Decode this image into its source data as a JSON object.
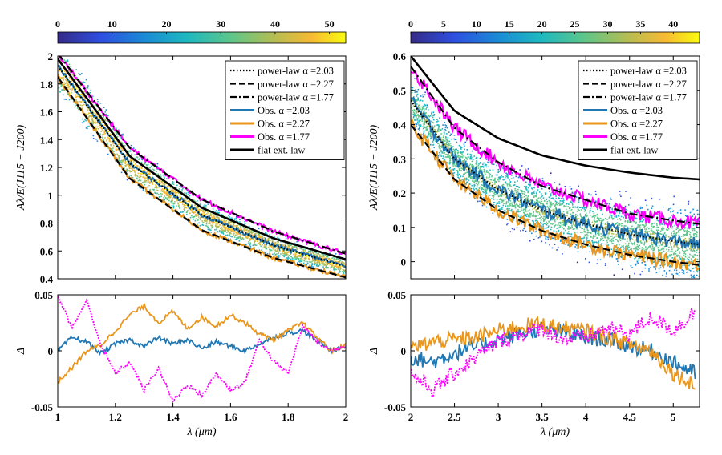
{
  "figure": {
    "description_free": true
  },
  "colors": {
    "power_law": "#000000",
    "obs_blue": "#1f77b4",
    "obs_orange": "#e8961e",
    "obs_magenta": "#ff00ff",
    "flat": "#000000",
    "scatter_low": "#4b3fd1",
    "scatter_mid": "#20c0c0",
    "scatter_high": "#f5e23b"
  },
  "chart_data": [
    {
      "type": "line",
      "panel": "left-top",
      "colorbar": {
        "ticks": [
          "0",
          "10",
          "20",
          "30",
          "40",
          "50"
        ],
        "range": [
          0,
          53
        ]
      },
      "xlim": [
        1,
        2
      ],
      "ylim": [
        0.4,
        2
      ],
      "xticks": [],
      "yticks": [
        "0.4",
        "0.6",
        "0.8",
        "1",
        "1.2",
        "1.4",
        "1.6",
        "1.8",
        "2"
      ],
      "ylabel": "Aλ/E(J115 − J200)",
      "legend": [
        "power-law α =2.03",
        "power-law α =2.27",
        "power-law α =1.77",
        "Obs. α =2.03",
        "Obs. α =2.27",
        "Obs. α =1.77",
        "flat ext. law"
      ],
      "series": [
        {
          "name": "power-law α =2.03",
          "style": "dotted",
          "x": [
            1.0,
            1.25,
            1.5,
            1.75,
            2.0
          ],
          "y": [
            1.93,
            1.23,
            0.86,
            0.64,
            0.49
          ]
        },
        {
          "name": "power-law α =2.27",
          "style": "dashed",
          "x": [
            1.0,
            1.25,
            1.5,
            1.75,
            2.0
          ],
          "y": [
            1.85,
            1.12,
            0.75,
            0.55,
            0.41
          ]
        },
        {
          "name": "power-law α =1.77",
          "style": "dashdot",
          "x": [
            1.0,
            1.25,
            1.5,
            1.75,
            2.0
          ],
          "y": [
            2.02,
            1.34,
            0.97,
            0.74,
            0.58
          ]
        },
        {
          "name": "flat ext. law",
          "style": "solid",
          "x": [
            1.0,
            1.25,
            1.5,
            1.75,
            2.0
          ],
          "y": [
            1.98,
            1.28,
            0.91,
            0.69,
            0.54
          ]
        }
      ]
    },
    {
      "type": "line",
      "panel": "left-bottom",
      "xlim": [
        1,
        2
      ],
      "ylim": [
        -0.05,
        0.05
      ],
      "xticks": [
        "1",
        "1.2",
        "1.4",
        "1.6",
        "1.8",
        "2"
      ],
      "yticks": [
        "-0.05",
        "0",
        "0.05"
      ],
      "xlabel": "λ (μm)",
      "ylabel": "Δ",
      "series": [
        {
          "name": "Obs. α =2.03",
          "x": [
            1.0,
            1.05,
            1.1,
            1.15,
            1.2,
            1.25,
            1.3,
            1.35,
            1.4,
            1.45,
            1.5,
            1.55,
            1.6,
            1.65,
            1.7,
            1.75,
            1.8,
            1.85,
            1.9,
            1.95,
            2.0
          ],
          "y": [
            0.0,
            0.012,
            0.008,
            -0.002,
            0.006,
            0.01,
            0.004,
            0.012,
            0.006,
            0.01,
            0.002,
            0.008,
            0.004,
            0.0,
            0.006,
            0.012,
            0.016,
            0.018,
            0.01,
            0.0,
            0.004
          ]
        },
        {
          "name": "Obs. α =2.27",
          "x": [
            1.0,
            1.05,
            1.1,
            1.15,
            1.2,
            1.25,
            1.3,
            1.35,
            1.4,
            1.45,
            1.5,
            1.55,
            1.6,
            1.65,
            1.7,
            1.75,
            1.8,
            1.85,
            1.9,
            1.95,
            2.0
          ],
          "y": [
            -0.028,
            -0.015,
            0.0,
            0.005,
            0.018,
            0.032,
            0.04,
            0.025,
            0.035,
            0.02,
            0.03,
            0.022,
            0.032,
            0.025,
            0.015,
            0.01,
            0.018,
            0.025,
            0.012,
            0.0,
            0.005
          ]
        },
        {
          "name": "Obs. α =1.77",
          "x": [
            1.0,
            1.05,
            1.1,
            1.15,
            1.2,
            1.25,
            1.3,
            1.35,
            1.4,
            1.45,
            1.5,
            1.55,
            1.6,
            1.65,
            1.7,
            1.75,
            1.8,
            1.85,
            1.9,
            1.95,
            2.0
          ],
          "y": [
            0.05,
            0.02,
            0.045,
            0.005,
            -0.02,
            -0.01,
            -0.035,
            -0.015,
            -0.045,
            -0.03,
            -0.04,
            -0.02,
            -0.035,
            -0.028,
            0.01,
            -0.01,
            -0.02,
            0.022,
            0.008,
            0.0,
            0.005
          ]
        }
      ]
    },
    {
      "type": "line",
      "panel": "right-top",
      "colorbar": {
        "ticks": [
          "0",
          "5",
          "10",
          "15",
          "20",
          "25",
          "30",
          "35",
          "40"
        ],
        "range": [
          0,
          44
        ]
      },
      "xlim": [
        2,
        5.3
      ],
      "ylim": [
        -0.05,
        0.6
      ],
      "xticks": [],
      "yticks": [
        "0",
        "0.1",
        "0.2",
        "0.3",
        "0.4",
        "0.5",
        "0.6"
      ],
      "ylabel": "Aλ/E(J115 − J200)",
      "legend": [
        "power-law α =2.03",
        "power-law α =2.27",
        "power-law α =1.77",
        "Obs. α =2.03",
        "Obs. α =2.27",
        "Obs. α =1.77",
        "flat ext. law"
      ],
      "series": [
        {
          "name": "power-law α =2.03",
          "style": "dotted",
          "x": [
            2.0,
            2.5,
            3.0,
            3.5,
            4.0,
            4.5,
            5.0,
            5.3
          ],
          "y": [
            0.47,
            0.3,
            0.21,
            0.15,
            0.11,
            0.08,
            0.06,
            0.05
          ]
        },
        {
          "name": "power-law α =2.27",
          "style": "dashed",
          "x": [
            2.0,
            2.5,
            3.0,
            3.5,
            4.0,
            4.5,
            5.0,
            5.3
          ],
          "y": [
            0.4,
            0.24,
            0.15,
            0.09,
            0.05,
            0.02,
            0.0,
            -0.01
          ]
        },
        {
          "name": "power-law α =1.77",
          "style": "dashdot",
          "x": [
            2.0,
            2.5,
            3.0,
            3.5,
            4.0,
            4.5,
            5.0,
            5.3
          ],
          "y": [
            0.57,
            0.39,
            0.29,
            0.22,
            0.18,
            0.14,
            0.12,
            0.11
          ]
        },
        {
          "name": "flat ext. law",
          "style": "solid",
          "x": [
            2.0,
            2.5,
            3.0,
            3.5,
            4.0,
            4.5,
            5.0,
            5.3
          ],
          "y": [
            0.6,
            0.44,
            0.36,
            0.31,
            0.28,
            0.26,
            0.245,
            0.24
          ]
        }
      ]
    },
    {
      "type": "line",
      "panel": "right-bottom",
      "xlim": [
        2,
        5.3
      ],
      "ylim": [
        -0.05,
        0.05
      ],
      "xticks": [
        "2",
        "2.5",
        "3",
        "3.5",
        "4",
        "4.5",
        "5"
      ],
      "yticks": [
        "-0.05",
        "0",
        "0.05"
      ],
      "xlabel": "λ (μm)",
      "ylabel": "Δ",
      "series": [
        {
          "name": "Obs. α =2.03",
          "x": [
            2.0,
            2.25,
            2.5,
            2.75,
            3.0,
            3.25,
            3.5,
            3.75,
            4.0,
            4.25,
            4.5,
            4.75,
            5.0,
            5.25
          ],
          "y": [
            -0.006,
            -0.01,
            -0.002,
            0.004,
            0.01,
            0.015,
            0.02,
            0.016,
            0.012,
            0.01,
            0.004,
            0.0,
            -0.01,
            -0.02
          ]
        },
        {
          "name": "Obs. α =2.27",
          "x": [
            2.0,
            2.25,
            2.5,
            2.75,
            3.0,
            3.25,
            3.5,
            3.75,
            4.0,
            4.25,
            4.5,
            4.75,
            5.0,
            5.25
          ],
          "y": [
            0.002,
            0.008,
            0.01,
            0.012,
            0.018,
            0.022,
            0.024,
            0.02,
            0.018,
            0.012,
            0.006,
            0.0,
            -0.02,
            -0.03
          ]
        },
        {
          "name": "Obs. α =1.77",
          "x": [
            2.0,
            2.25,
            2.5,
            2.75,
            3.0,
            3.25,
            3.5,
            3.75,
            4.0,
            4.25,
            4.5,
            4.75,
            5.0,
            5.25
          ],
          "y": [
            -0.02,
            -0.035,
            -0.02,
            -0.005,
            0.008,
            0.015,
            0.02,
            0.01,
            0.012,
            0.02,
            0.015,
            0.03,
            0.018,
            0.035
          ]
        }
      ]
    }
  ]
}
